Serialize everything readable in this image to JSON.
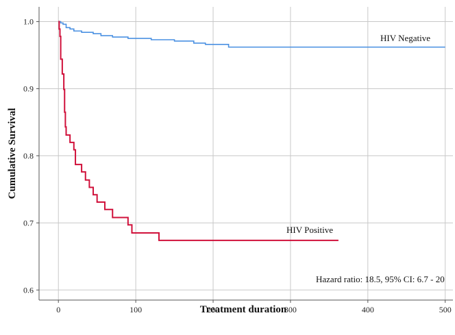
{
  "chart_data": {
    "type": "line",
    "title": "",
    "xlabel": "Treatment duration",
    "ylabel": "Cumulative Survival",
    "xlim": [
      -25,
      510
    ],
    "ylim": [
      0.585,
      1.022
    ],
    "xticks": [
      0,
      100,
      200,
      300,
      400,
      500
    ],
    "yticks": [
      0.6,
      0.7,
      0.8,
      0.9,
      1.0
    ],
    "xtick_labels": [
      "0",
      "100",
      "200",
      "300",
      "400",
      "500"
    ],
    "ytick_labels": [
      "0.6",
      "0.7",
      "0.8",
      "0.9",
      "1.0"
    ],
    "grid": true,
    "annotation": "Hazard ratio: 18.5, 95% CI: 6.7 - 20",
    "series": [
      {
        "name": "HIV Negative",
        "color": "#4a90e2",
        "step": true,
        "x": [
          0,
          3,
          6,
          10,
          15,
          20,
          30,
          45,
          55,
          70,
          90,
          120,
          150,
          175,
          190,
          220,
          500
        ],
        "y": [
          1.0,
          0.998,
          0.996,
          0.991,
          0.989,
          0.986,
          0.984,
          0.982,
          0.979,
          0.977,
          0.975,
          0.973,
          0.971,
          0.968,
          0.966,
          0.962,
          0.962
        ]
      },
      {
        "name": "HIV Positive",
        "color": "#d0103a",
        "step": true,
        "x": [
          0,
          1,
          2,
          3,
          5,
          7,
          8,
          9,
          10,
          15,
          20,
          22,
          25,
          30,
          35,
          40,
          45,
          50,
          60,
          70,
          80,
          90,
          95,
          130,
          362
        ],
        "y": [
          1.0,
          0.989,
          0.978,
          0.944,
          0.922,
          0.899,
          0.865,
          0.843,
          0.831,
          0.82,
          0.809,
          0.787,
          0.787,
          0.776,
          0.764,
          0.753,
          0.742,
          0.731,
          0.72,
          0.708,
          0.708,
          0.697,
          0.685,
          0.674,
          0.674
        ]
      }
    ]
  }
}
